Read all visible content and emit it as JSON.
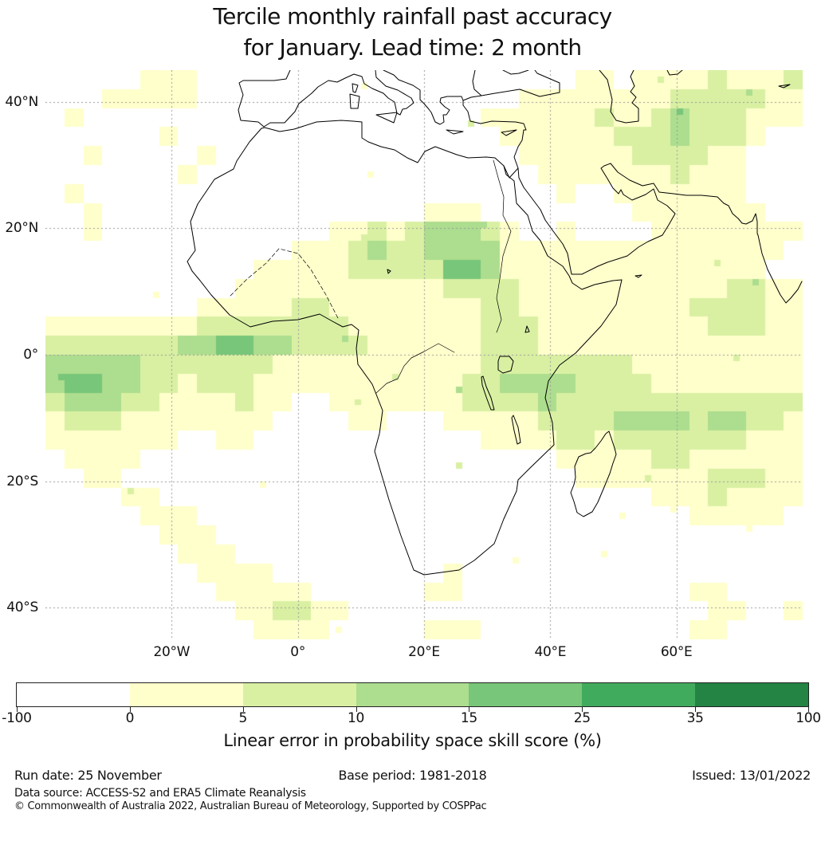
{
  "title": {
    "line1": "Tercile monthly rainfall past accuracy",
    "line2": "for January. Lead time: 2 month"
  },
  "chart_data": {
    "type": "heatmap",
    "title": "Tercile monthly rainfall past accuracy for January. Lead time: 2 month",
    "colorbar": {
      "label": "Linear error in probability space skill score (%)",
      "boundaries": [
        -100,
        0,
        5,
        10,
        15,
        25,
        35,
        100
      ],
      "tick_labels": [
        "-100",
        "0",
        "5",
        "10",
        "15",
        "25",
        "35",
        "100"
      ],
      "colors": [
        "#ffffff",
        "#ffffcc",
        "#d9f0a3",
        "#addd8e",
        "#78c679",
        "#41ab5d",
        "#238443"
      ]
    },
    "x_axis": {
      "ticks": [
        {
          "label": "20°W",
          "lon": -20
        },
        {
          "label": "0°",
          "lon": 0
        },
        {
          "label": "20°E",
          "lon": 20
        },
        {
          "label": "40°E",
          "lon": 40
        },
        {
          "label": "60°E",
          "lon": 60
        }
      ]
    },
    "y_axis": {
      "ticks": [
        {
          "label": "40°N",
          "lat": 40
        },
        {
          "label": "20°N",
          "lat": 20
        },
        {
          "label": "0°",
          "lat": 0
        },
        {
          "label": "20°S",
          "lat": -20
        },
        {
          "label": "40°S",
          "lat": -40
        }
      ]
    },
    "extent": {
      "lon_min": -40,
      "lon_max": 80,
      "lat_min": -45,
      "lat_max": 45
    },
    "grid": {
      "description": "Skill score bins on a 3-degree grid, row 0 = 45N..42N, col 0 = 40W..37W. Digit = colorbar bin index (0=white <0%, 1=0-5, 2=5-10, 3=10-15, 4=15-25, 5=25-35, 6=35-100).",
      "cell_deg": 3,
      "ncols": 40,
      "nrows": 30,
      "bin_rows": [
        "1111122211100100111110100111221222232223",
        "1112222211010001111001111222222223333322",
        "1211111110100111111101122222232234333222",
        "1111112111110100111111112222223334333211",
        "1121111121111101111111111222222333322111",
        "1111111211111111001111111122222223222110",
        "1211111110011111011111111112112222222100",
        "1121111100111111111122211111111222222211",
        "1121111111111112232344432112111122222222",
        "1111111111111222343344442222222222222221",
        "1111111111122222333335542222222222222211",
        "1111111111222222222223333222222222223322",
        "1111111122222332222222233222222222333322",
        "2222222233333333222222233322222222233322",
        "3333333445544333322222233322222222222222",
        "4444433333332222222222233333333222222222",
        "4554433233322222222222334444333322222222",
        "3444332222322112222222333343333333333333",
        "2333222222221111221112222233334444344332",
        "2222222112211111111111122223323333333222",
        "1222211111110011111111111112222233222222",
        "1122111100110001111111101111222222233322",
        "1111221100000111110111110111111122232222",
        "1111122210000011111111111011111111222221",
        "1111112221000001111101111111111111111111",
        "1111111222110000111011111111111111111111",
        "1111111122221100111112111111111111111111",
        "1111111112222211111122111111111111221111",
        "1111111111223322111111111111111111122112",
        "1111111111122221111122211111111111221111"
      ]
    },
    "legend_position": "bottom"
  },
  "footer": {
    "run_date": "Run date: 25 November",
    "base_period": "Base period: 1981-2018",
    "issued": "Issued: 13/01/2022",
    "data_source": "Data source: ACCESS-S2 and ERA5 Climate Reanalysis",
    "copyright": "© Commonwealth of Australia 2022, Australian Bureau of Meteorology, Supported by COSPPac"
  }
}
